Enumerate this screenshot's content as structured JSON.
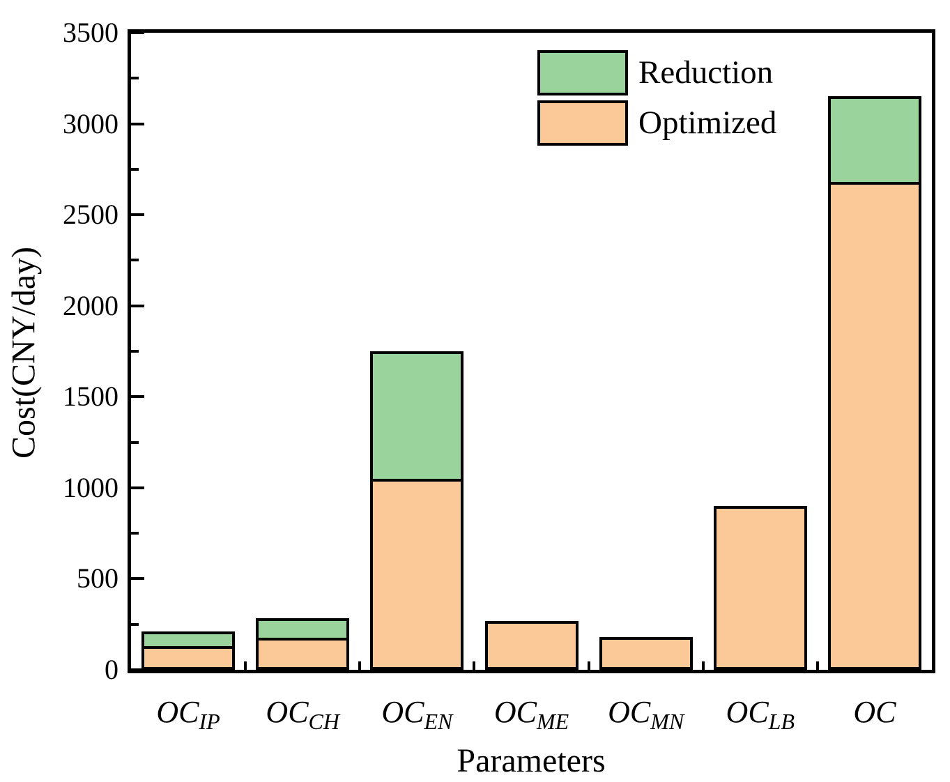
{
  "chart_data": {
    "type": "bar",
    "stacked": true,
    "title": "",
    "xlabel": "Parameters",
    "ylabel": "Cost(CNY/day)",
    "ylim": [
      0,
      3500
    ],
    "grid": false,
    "ytick_major_values": [
      0,
      500,
      1000,
      1500,
      2000,
      2500,
      3000,
      3500
    ],
    "ytick_labels": [
      "0",
      "500",
      "1000",
      "1500",
      "2000",
      "2500",
      "3000",
      "3500"
    ],
    "ytick_minor_values": [
      250,
      750,
      1250,
      1750,
      2250,
      2750,
      3250
    ],
    "categories": [
      {
        "label": "OC",
        "sub": "IP"
      },
      {
        "label": "OC",
        "sub": "CH"
      },
      {
        "label": "OC",
        "sub": "EN"
      },
      {
        "label": "OC",
        "sub": "ME"
      },
      {
        "label": "OC",
        "sub": "MN"
      },
      {
        "label": "OC",
        "sub": "LB"
      },
      {
        "label": "OC",
        "sub": ""
      }
    ],
    "series": [
      {
        "name": "Optimized",
        "color": "#FBC897",
        "values": [
          130,
          175,
          1050,
          270,
          180,
          900,
          2680
        ]
      },
      {
        "name": "Reduction",
        "color": "#9BD39C",
        "values": [
          80,
          110,
          700,
          0,
          0,
          0,
          470
        ]
      }
    ],
    "totals": [
      210,
      285,
      1750,
      270,
      180,
      900,
      3150
    ],
    "legend": {
      "position": "upper-right-inside",
      "entries": [
        {
          "label": "Reduction",
          "color": "#9BD39C"
        },
        {
          "label": "Optimized",
          "color": "#FBC897"
        }
      ]
    },
    "styles": {
      "bar_edge_color": "#000000",
      "axis_color": "#000000",
      "background": "#FFFFFF",
      "text_color": "#000000"
    }
  }
}
